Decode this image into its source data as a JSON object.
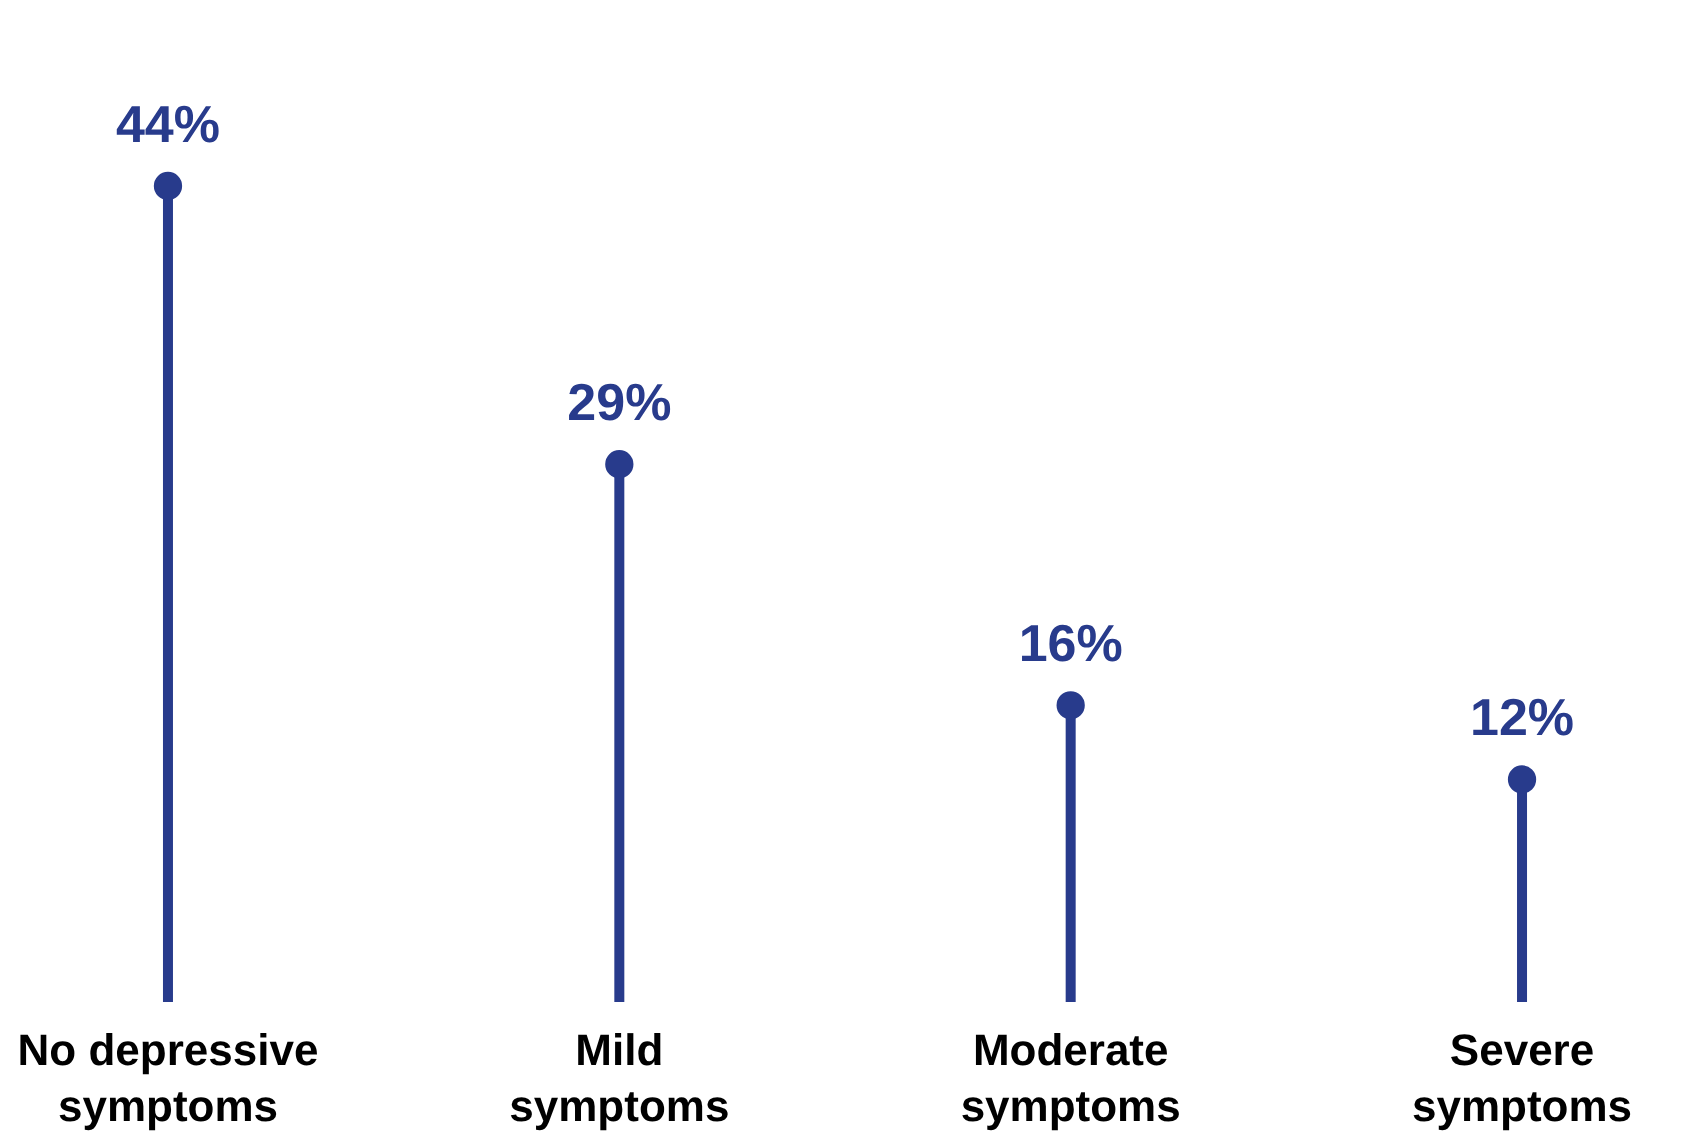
{
  "chart_data": {
    "type": "lollipop",
    "categories": [
      "No depressive symptoms",
      "Mild symptoms",
      "Moderate symptoms",
      "Severe symptoms"
    ],
    "values": [
      44,
      29,
      16,
      12
    ],
    "value_labels": [
      "44%",
      "29%",
      "16%",
      "12%"
    ],
    "color": "#283b8c",
    "marker": "circle"
  }
}
